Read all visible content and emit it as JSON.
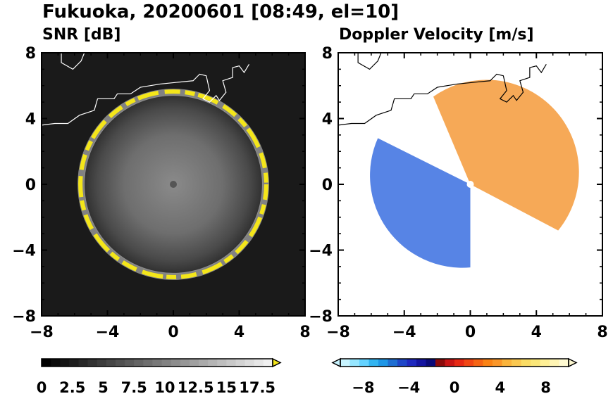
{
  "figure": {
    "title": "Fukuoka, 20200601 [08:49, el=10]"
  },
  "chart_data": [
    {
      "type": "heatmap",
      "title": "SNR [dB]",
      "xlim": [
        -8,
        8
      ],
      "ylim": [
        -8,
        8
      ],
      "x_ticks": [
        -8,
        -4,
        0,
        4,
        8
      ],
      "y_ticks": [
        -8,
        -4,
        0,
        4,
        8
      ],
      "x_tick_labels": [
        "−8",
        "−4",
        "0",
        "4",
        "8"
      ],
      "y_tick_labels": [
        "−8",
        "−4",
        "0",
        "4",
        "8"
      ],
      "background_color": "#1a1a1a",
      "echo_ring_radius": 5.6,
      "echo_ring_color": "#f4e61a",
      "colorbar": {
        "range": [
          0,
          18.75
        ],
        "ticks": [
          0,
          2.5,
          5,
          7.5,
          10,
          12.5,
          15,
          17.5
        ],
        "tick_labels": [
          "0",
          "2.5",
          "5",
          "7.5",
          "10",
          "12.5",
          "15",
          "17.5"
        ],
        "extend": "max",
        "colors": [
          "#000000",
          "#0a0a0a",
          "#141414",
          "#1e1e1e",
          "#282828",
          "#323232",
          "#3c3c3c",
          "#464646",
          "#505050",
          "#5a5a5a",
          "#646464",
          "#6e6e6e",
          "#787878",
          "#828282",
          "#8c8c8c",
          "#969696",
          "#a0a0a0",
          "#aaaaaa",
          "#b4b4b4",
          "#bebebe",
          "#c8c8c8",
          "#d2d2d2",
          "#dcdcdc",
          "#e6e6e6",
          "#f0f0f0"
        ],
        "extend_color": "#f4e61a"
      }
    },
    {
      "type": "heatmap",
      "title": "Doppler Velocity [m/s]",
      "xlim": [
        -8,
        8
      ],
      "ylim": [
        -8,
        8
      ],
      "x_ticks": [
        -8,
        -4,
        0,
        4,
        8
      ],
      "y_ticks": [
        -8,
        -4,
        0,
        4,
        8
      ],
      "x_tick_labels": [
        "−8",
        "−4",
        "0",
        "4",
        "8"
      ],
      "y_tick_labels": [
        "−8",
        "−4",
        "0",
        "4",
        "8"
      ],
      "background_color": "#ffffff",
      "colorbar": {
        "range": [
          -10,
          10
        ],
        "ticks": [
          -8,
          -4,
          0,
          4,
          8
        ],
        "tick_labels": [
          "−8",
          "−4",
          "0",
          "4",
          "8"
        ],
        "extend": "both",
        "colors": [
          "#c8f4ff",
          "#96e6ff",
          "#64d2ff",
          "#32b4f0",
          "#1e96e6",
          "#1e6ed2",
          "#1e46c8",
          "#1e28be",
          "#1414a0",
          "#0a0a78",
          "#8c0a0a",
          "#c81414",
          "#e62814",
          "#f04614",
          "#f56414",
          "#fa8214",
          "#fa9628",
          "#fab43c",
          "#fac850",
          "#fadc64",
          "#fae678",
          "#fff096",
          "#fff5b4",
          "#fffad2"
        ]
      }
    }
  ]
}
